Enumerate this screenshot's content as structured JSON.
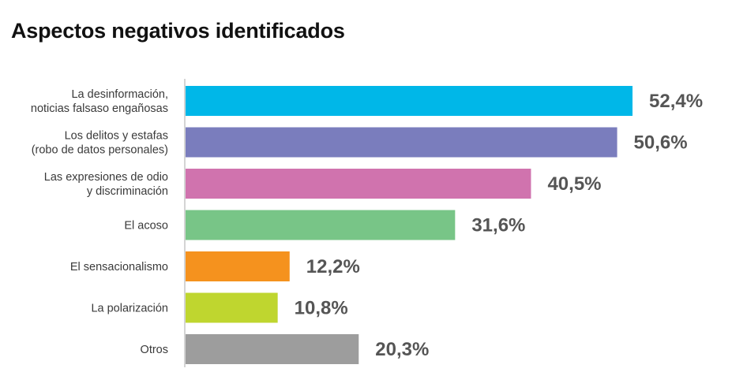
{
  "title": "Aspectos negativos identificados",
  "chart_data": {
    "type": "bar",
    "orientation": "horizontal",
    "title": "Aspectos negativos identificados",
    "xlabel": "",
    "ylabel": "",
    "grid": false,
    "xlim": [
      0,
      52.4
    ],
    "categories": [
      [
        "La desinformación,",
        "noticias falsaso engañosas"
      ],
      [
        "Los delitos y estafas",
        "(robo de datos personales)"
      ],
      [
        "Las expresiones de odio",
        "y discriminación"
      ],
      [
        "El acoso"
      ],
      [
        "El sensacionalismo"
      ],
      [
        "La polarización"
      ],
      [
        "Otros"
      ]
    ],
    "values": [
      52.4,
      50.6,
      40.5,
      31.6,
      12.2,
      10.8,
      20.3
    ],
    "value_labels": [
      "52,4%",
      "50,6%",
      "40,5%",
      "31,6%",
      "12,2%",
      "10,8%",
      "20,3%"
    ],
    "colors": [
      "#00b7e8",
      "#7a7dbd",
      "#d073ae",
      "#78c587",
      "#f5921e",
      "#bfd62f",
      "#9d9d9d"
    ]
  }
}
